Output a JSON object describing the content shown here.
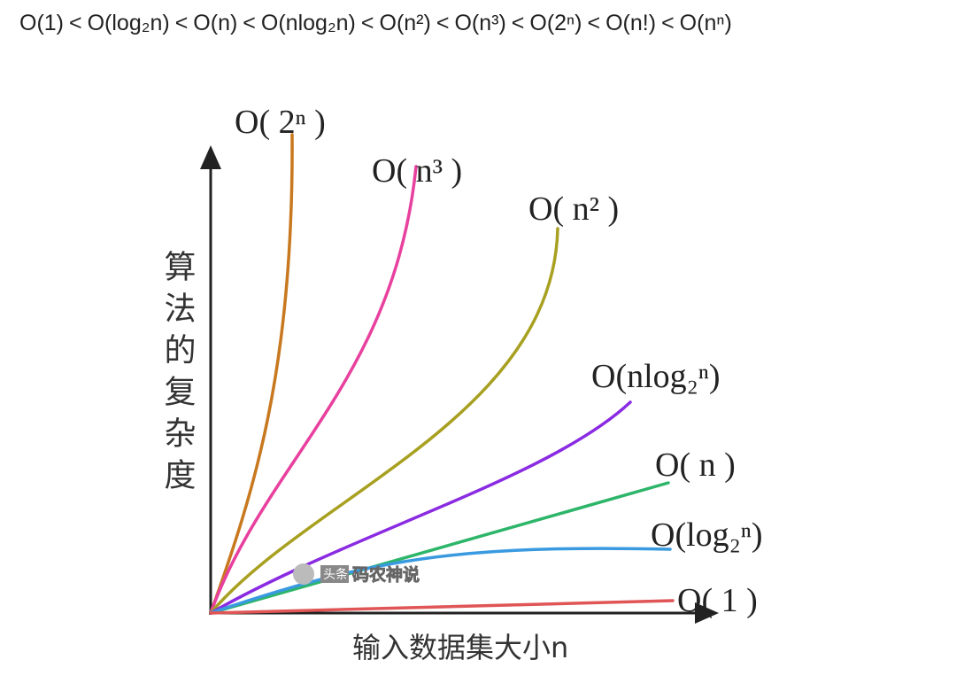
{
  "formula": {
    "terms": [
      "O(1)",
      "O(log₂n)",
      "O(n)",
      "O(nlog₂n)",
      "O(n²)",
      "O(n³)",
      "O(2ⁿ)",
      "O(n!)",
      "O(nⁿ)"
    ],
    "separator": "<"
  },
  "diagram": {
    "y_axis_label": "算法的复杂度",
    "x_axis_label": "输入数据集大小n",
    "curves": [
      {
        "label": "O( 2ⁿ )",
        "color": "#c8781e"
      },
      {
        "label": "O( n³ )",
        "color": "#e8409e"
      },
      {
        "label": "O( n² )",
        "color": "#a8a020"
      },
      {
        "label": "O(nlog₂ⁿ)",
        "color": "#8a2be2"
      },
      {
        "label": "O( n )",
        "color": "#2db56a"
      },
      {
        "label": "O(log₂ⁿ)",
        "color": "#3a9ae0"
      },
      {
        "label": "O( 1 )",
        "color": "#e05555"
      }
    ],
    "watermark": [
      "头条",
      "码农神说"
    ]
  }
}
